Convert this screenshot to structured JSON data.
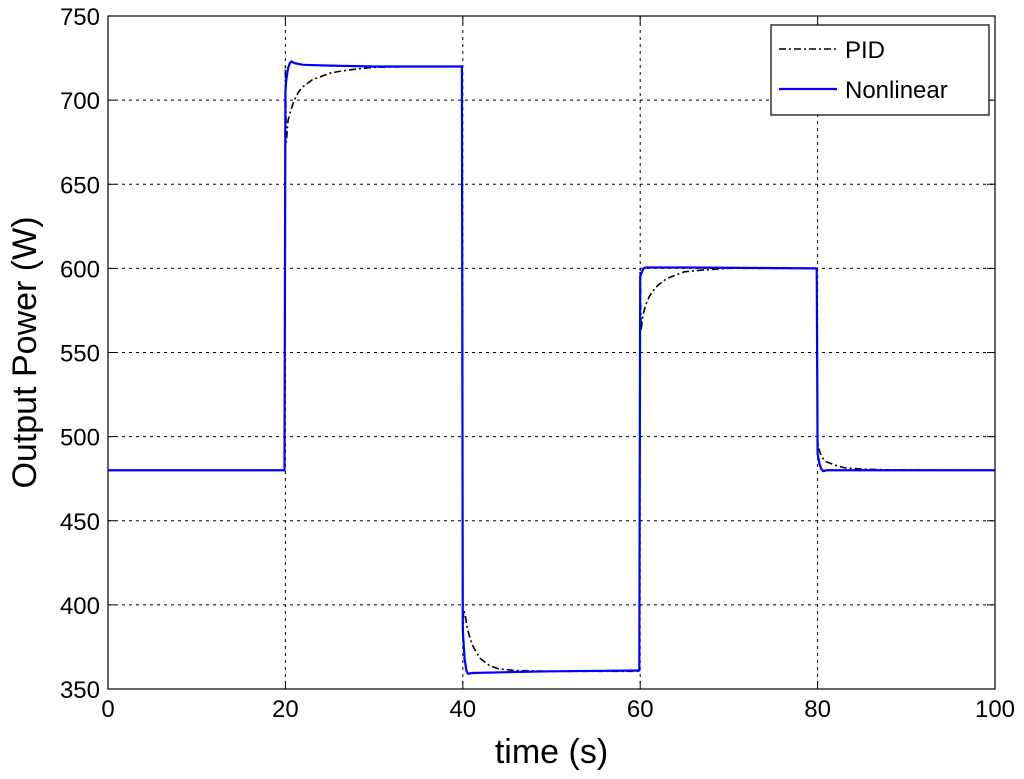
{
  "chart_data": {
    "type": "line",
    "title": "",
    "xlabel": "time (s)",
    "ylabel": "Output Power (W)",
    "xlim": [
      0,
      100
    ],
    "ylim": [
      350,
      750
    ],
    "xticks": [
      0,
      20,
      40,
      60,
      80,
      100
    ],
    "yticks": [
      350,
      400,
      450,
      500,
      550,
      600,
      650,
      700,
      750
    ],
    "xtick_labels": [
      "0",
      "20",
      "40",
      "60",
      "80",
      "100"
    ],
    "ytick_labels": [
      "350",
      "400",
      "450",
      "500",
      "550",
      "600",
      "650",
      "700",
      "750"
    ],
    "grid": true,
    "legend_position": "top-right",
    "series": [
      {
        "name": "PID",
        "color": "#000000",
        "style": "dash-dot",
        "x": [
          0,
          19.9,
          20.0,
          20.1,
          20.3,
          20.6,
          21.0,
          21.5,
          22.0,
          23.0,
          24.0,
          25.0,
          26.0,
          28.0,
          30.0,
          35.0,
          39.9,
          40.0,
          40.1,
          40.3,
          40.5,
          41.0,
          41.5,
          42.0,
          43.0,
          44.0,
          46.0,
          50.0,
          59.9,
          60.0,
          60.1,
          60.3,
          60.6,
          61.0,
          61.5,
          62.0,
          63.0,
          64.0,
          65.0,
          67.0,
          70.0,
          79.9,
          80.0,
          80.1,
          80.3,
          80.6,
          81.0,
          82.0,
          83.0,
          85.0,
          88.0,
          100
        ],
        "y": [
          480,
          480,
          720,
          675,
          688,
          694,
          700,
          705,
          708,
          712,
          714,
          716,
          717,
          718.5,
          719.5,
          720,
          720,
          380,
          397,
          393,
          386,
          377,
          372,
          368,
          364,
          362,
          361,
          360.5,
          360.5,
          600,
          563,
          572,
          578,
          583,
          587,
          590,
          594,
          596,
          598,
          599,
          600,
          600,
          497,
          494,
          490,
          487,
          485,
          483,
          481.5,
          480.7,
          480.2,
          480
        ]
      },
      {
        "name": "Nonlinear",
        "color": "#0000ff",
        "style": "solid",
        "x": [
          0,
          19.9,
          20.0,
          20.1,
          20.3,
          20.5,
          20.7,
          21.0,
          22.0,
          25.0,
          30.0,
          39.9,
          40.0,
          40.2,
          40.4,
          40.6,
          41.0,
          45.0,
          50.0,
          59.9,
          60.0,
          60.2,
          60.4,
          60.6,
          61.0,
          65.0,
          79.9,
          80.0,
          80.2,
          80.4,
          80.6,
          81.0,
          85.0,
          100
        ],
        "y": [
          480,
          480,
          705,
          712,
          719,
          722,
          723,
          722,
          721,
          720.5,
          720,
          720,
          385,
          368,
          361,
          359,
          359.5,
          360,
          360.5,
          361,
          595,
          598,
          600,
          600.5,
          600.5,
          600.5,
          600,
          490,
          484,
          481,
          479.5,
          480,
          480,
          480
        ]
      }
    ]
  }
}
